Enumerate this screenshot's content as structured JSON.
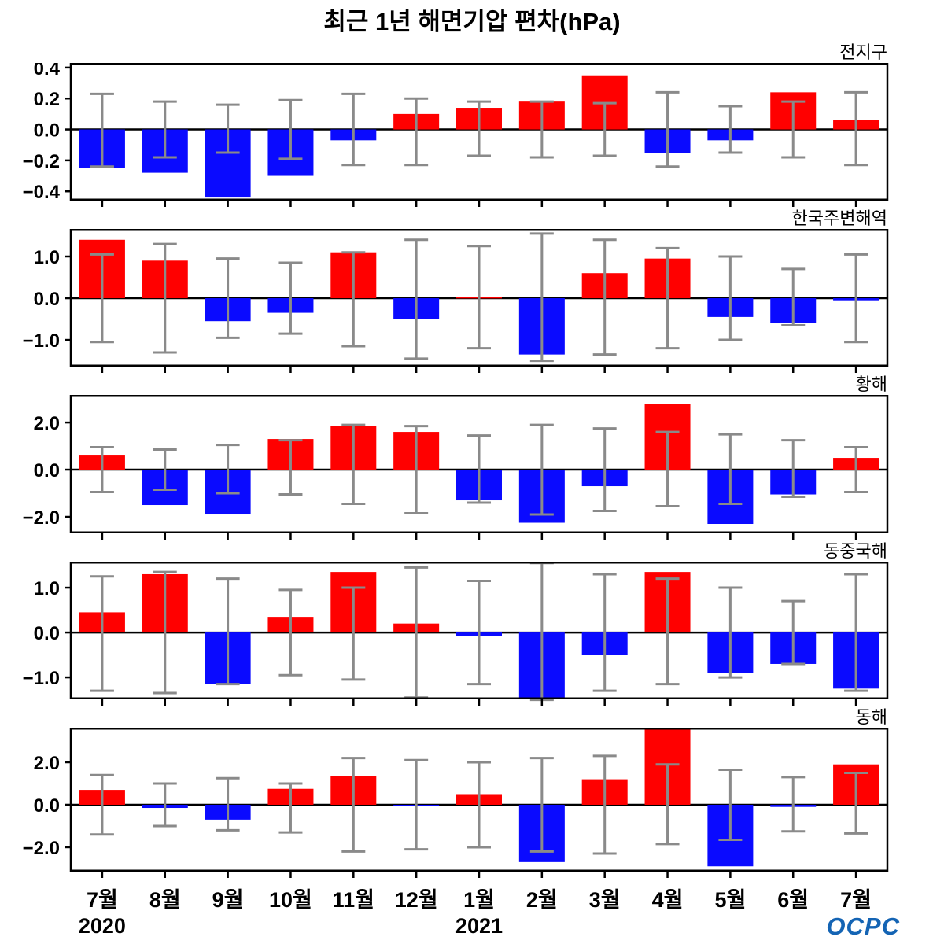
{
  "chart_data": {
    "type": "bar",
    "title": "최근 1년 해면기압 편차(hPa)",
    "ylabel": "hPa",
    "grid": false,
    "legend": "none",
    "months": [
      "7월",
      "8월",
      "9월",
      "10월",
      "11월",
      "12월",
      "1월",
      "2월",
      "3월",
      "4월",
      "5월",
      "6월",
      "7월"
    ],
    "year_labels": [
      {
        "text": "2020",
        "month_index": 0
      },
      {
        "text": "2021",
        "month_index": 6
      }
    ],
    "bar_colors": {
      "positive": "#ff0000",
      "negative": "#0a0aff"
    },
    "error_bar_color": "#8a8a8a",
    "panels": [
      {
        "label": "전지구",
        "yticks": [
          0.4,
          0.2,
          0.0,
          -0.2,
          -0.4
        ],
        "ylim": [
          -0.46,
          0.43
        ],
        "values": [
          -0.25,
          -0.28,
          -0.44,
          -0.3,
          -0.07,
          0.1,
          0.14,
          0.18,
          0.35,
          -0.15,
          -0.07,
          0.24,
          0.06
        ],
        "err_hi": [
          0.23,
          0.18,
          0.16,
          0.19,
          0.23,
          0.2,
          0.18,
          0.18,
          0.17,
          0.24,
          0.15,
          0.18,
          0.24
        ],
        "err_lo": [
          -0.24,
          -0.18,
          -0.15,
          -0.19,
          -0.23,
          -0.23,
          -0.17,
          -0.18,
          -0.17,
          -0.24,
          -0.15,
          -0.18,
          -0.23
        ]
      },
      {
        "label": "한국주변해역",
        "yticks": [
          1.0,
          0.0,
          -1.0
        ],
        "ylim": [
          -1.64,
          1.66
        ],
        "values": [
          1.4,
          0.9,
          -0.55,
          -0.35,
          1.1,
          -0.5,
          0.02,
          -1.35,
          0.6,
          0.95,
          -0.45,
          -0.6,
          -0.05
        ],
        "err_hi": [
          1.05,
          1.3,
          0.95,
          0.85,
          1.1,
          1.4,
          1.25,
          1.55,
          1.4,
          1.2,
          1.0,
          0.7,
          1.05
        ],
        "err_lo": [
          -1.05,
          -1.3,
          -0.95,
          -0.85,
          -1.15,
          -1.45,
          -1.2,
          -1.5,
          -1.35,
          -1.2,
          -1.0,
          -0.65,
          -1.05
        ]
      },
      {
        "label": "황해",
        "yticks": [
          2.0,
          0.0,
          -2.0
        ],
        "ylim": [
          -2.7,
          3.17
        ],
        "values": [
          0.6,
          -1.5,
          -1.9,
          1.3,
          1.85,
          1.6,
          -1.3,
          -2.25,
          -0.7,
          2.8,
          -2.3,
          -1.05,
          0.5
        ],
        "err_hi": [
          0.95,
          0.85,
          1.05,
          1.25,
          1.9,
          1.85,
          1.45,
          1.9,
          1.75,
          1.6,
          1.5,
          1.25,
          0.95
        ],
        "err_lo": [
          -0.95,
          -0.85,
          -1.0,
          -1.05,
          -1.45,
          -1.85,
          -1.4,
          -1.9,
          -1.75,
          -1.55,
          -1.45,
          -1.15,
          -0.95
        ]
      },
      {
        "label": "동중국해",
        "yticks": [
          1.0,
          0.0,
          -1.0
        ],
        "ylim": [
          -1.49,
          1.58
        ],
        "values": [
          0.45,
          1.3,
          -1.15,
          0.35,
          1.35,
          0.2,
          -0.07,
          -1.45,
          -0.5,
          1.35,
          -0.9,
          -0.7,
          -1.25
        ],
        "err_hi": [
          1.25,
          1.35,
          1.2,
          0.95,
          1.0,
          1.45,
          1.15,
          1.55,
          1.3,
          1.2,
          1.0,
          0.7,
          1.3
        ],
        "err_lo": [
          -1.3,
          -1.35,
          -1.15,
          -0.95,
          -1.05,
          -1.45,
          -1.15,
          -1.5,
          -1.3,
          -1.15,
          -1.0,
          -0.7,
          -1.3
        ]
      },
      {
        "label": "동해",
        "yticks": [
          2.0,
          0.0,
          -2.0
        ],
        "ylim": [
          -3.15,
          3.63
        ],
        "values": [
          0.7,
          -0.15,
          -0.7,
          0.75,
          1.35,
          -0.05,
          0.5,
          -2.7,
          1.2,
          3.6,
          -2.9,
          -0.1,
          1.9
        ],
        "err_hi": [
          1.4,
          1.0,
          1.25,
          1.0,
          2.2,
          2.1,
          2.0,
          2.2,
          2.3,
          1.9,
          1.65,
          1.3,
          1.5
        ],
        "err_lo": [
          -1.4,
          -1.0,
          -1.2,
          -1.3,
          -2.2,
          -2.1,
          -2.0,
          -2.2,
          -2.3,
          -1.85,
          -1.65,
          -1.25,
          -1.35
        ]
      }
    ]
  },
  "logo": {
    "text": "OCPC",
    "color": "#1464b4"
  }
}
